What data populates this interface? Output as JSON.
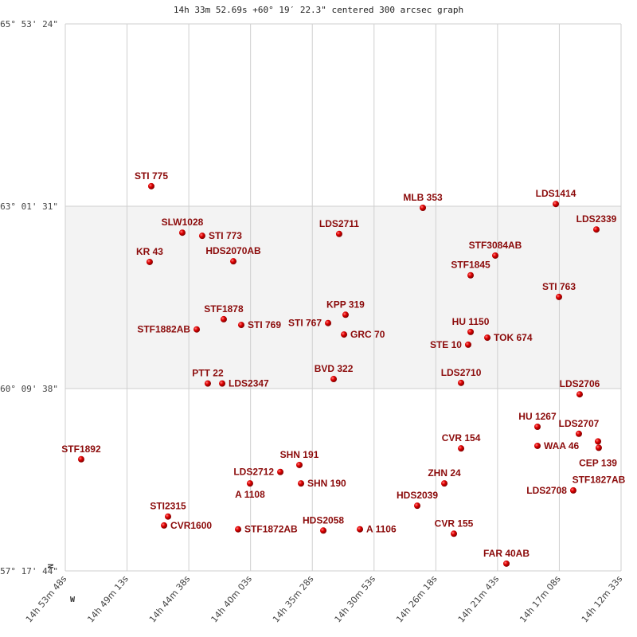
{
  "title": "14h 33m 52.69s +60° 19′ 22.3\" centered 300 arcsec graph",
  "chart_data": {
    "type": "scatter",
    "title": "14h 33m 52.69s +60° 19′ 22.3\" centered 300 arcsec graph",
    "x_range_hours": [
      14.89667,
      14.20917
    ],
    "y_range_deg": [
      65.89,
      57.2956
    ],
    "grid": true,
    "x_ticks": [
      {
        "value": 14.89667,
        "label": "14h 53m 48s"
      },
      {
        "value": 14.82028,
        "label": "14h 49m 13s"
      },
      {
        "value": 14.74389,
        "label": "14h 44m 38s"
      },
      {
        "value": 14.6675,
        "label": "14h 40m 03s"
      },
      {
        "value": 14.59111,
        "label": "14h 35m 28s"
      },
      {
        "value": 14.51472,
        "label": "14h 30m 53s"
      },
      {
        "value": 14.43833,
        "label": "14h 26m 18s"
      },
      {
        "value": 14.36194,
        "label": "14h 21m 43s"
      },
      {
        "value": 14.28556,
        "label": "14h 17m 08s"
      },
      {
        "value": 14.20917,
        "label": "14h 12m 33s"
      }
    ],
    "y_ticks": [
      {
        "value": 65.89,
        "label": "+65° 53' 24\""
      },
      {
        "value": 63.0253,
        "label": "+63° 01' 31\""
      },
      {
        "value": 60.1606,
        "label": "+60° 09' 38\""
      },
      {
        "value": 57.2956,
        "label": "+57° 17' 44\""
      }
    ],
    "highlight_band_deg": [
      60.1606,
      63.0253
    ],
    "direction_labels": {
      "north": "N",
      "west": "W"
    },
    "marker_color": "#d40000",
    "label_color": "#8b0a0a",
    "points": [
      {
        "name": "STI 775",
        "ra": 14.7903,
        "dec": 63.34
      },
      {
        "name": "SLW1028",
        "ra": 14.7519,
        "dec": 62.61
      },
      {
        "name": "STI 773",
        "ra": 14.7273,
        "dec": 62.56
      },
      {
        "name": "KR   43",
        "ra": 14.7923,
        "dec": 62.15
      },
      {
        "name": "HDS2070AB",
        "ra": 14.6888,
        "dec": 62.16
      },
      {
        "name": "LDS2711",
        "ra": 14.5579,
        "dec": 62.59
      },
      {
        "name": "MLB 353",
        "ra": 14.4544,
        "dec": 63.0
      },
      {
        "name": "LDS1414",
        "ra": 14.2899,
        "dec": 63.06
      },
      {
        "name": "LDS2339",
        "ra": 14.2397,
        "dec": 62.66
      },
      {
        "name": "STF3084AB",
        "ra": 14.3648,
        "dec": 62.25
      },
      {
        "name": "STF1845",
        "ra": 14.3953,
        "dec": 61.94
      },
      {
        "name": "STI 763",
        "ra": 14.286,
        "dec": 61.6
      },
      {
        "name": "STF1878",
        "ra": 14.7007,
        "dec": 61.25
      },
      {
        "name": "STI 769",
        "ra": 14.679,
        "dec": 61.16
      },
      {
        "name": "STF1882AB",
        "ra": 14.7341,
        "dec": 61.09
      },
      {
        "name": "KPP 319",
        "ra": 14.55,
        "dec": 61.32
      },
      {
        "name": "STI 767",
        "ra": 14.5716,
        "dec": 61.19
      },
      {
        "name": "GRC  70",
        "ra": 14.5519,
        "dec": 61.01
      },
      {
        "name": "HU 1150",
        "ra": 14.3953,
        "dec": 61.05
      },
      {
        "name": "TOK 674",
        "ra": 14.3746,
        "dec": 60.96
      },
      {
        "name": "STE  10",
        "ra": 14.3983,
        "dec": 60.85
      },
      {
        "name": "BVD 322",
        "ra": 14.5647,
        "dec": 60.31
      },
      {
        "name": "PTT  22",
        "ra": 14.7204,
        "dec": 60.24
      },
      {
        "name": "LDS2347",
        "ra": 14.7026,
        "dec": 60.24
      },
      {
        "name": "LDS2710",
        "ra": 14.4071,
        "dec": 60.25
      },
      {
        "name": "LDS2706",
        "ra": 14.2604,
        "dec": 60.07
      },
      {
        "name": "HU 1267",
        "ra": 14.3126,
        "dec": 59.56
      },
      {
        "name": "WAA  46",
        "ra": 14.3126,
        "dec": 59.26
      },
      {
        "name": "LDS2707",
        "ra": 14.2614,
        "dec": 59.45
      },
      {
        "name": "CEP 139",
        "ra": 14.2377,
        "dec": 59.33
      },
      {
        "name": "STF1827AB",
        "ra": 14.2368,
        "dec": 59.23
      },
      {
        "name": "CVR 154",
        "ra": 14.4071,
        "dec": 59.22
      },
      {
        "name": "STF1892",
        "ra": 14.877,
        "dec": 59.05
      },
      {
        "name": "SHN 191",
        "ra": 14.6071,
        "dec": 58.96
      },
      {
        "name": "LDS2712",
        "ra": 14.6307,
        "dec": 58.85
      },
      {
        "name": "A   1108",
        "ra": 14.6682,
        "dec": 58.67
      },
      {
        "name": "SHN 190",
        "ra": 14.6051,
        "dec": 58.67
      },
      {
        "name": "ZHN  24",
        "ra": 14.4278,
        "dec": 58.67
      },
      {
        "name": "LDS2708",
        "ra": 14.2683,
        "dec": 58.56
      },
      {
        "name": "HDS2039",
        "ra": 14.4613,
        "dec": 58.32
      },
      {
        "name": "STI2315",
        "ra": 14.7696,
        "dec": 58.15
      },
      {
        "name": "CVR1600",
        "ra": 14.7745,
        "dec": 58.01
      },
      {
        "name": "STF1872AB",
        "ra": 14.6829,
        "dec": 57.95
      },
      {
        "name": "HDS2058",
        "ra": 14.5775,
        "dec": 57.93
      },
      {
        "name": "A   1106",
        "ra": 14.5322,
        "dec": 57.95
      },
      {
        "name": "CVR 155",
        "ra": 14.416,
        "dec": 57.88
      },
      {
        "name": "FAR  40AB",
        "ra": 14.351,
        "dec": 57.41
      }
    ]
  }
}
